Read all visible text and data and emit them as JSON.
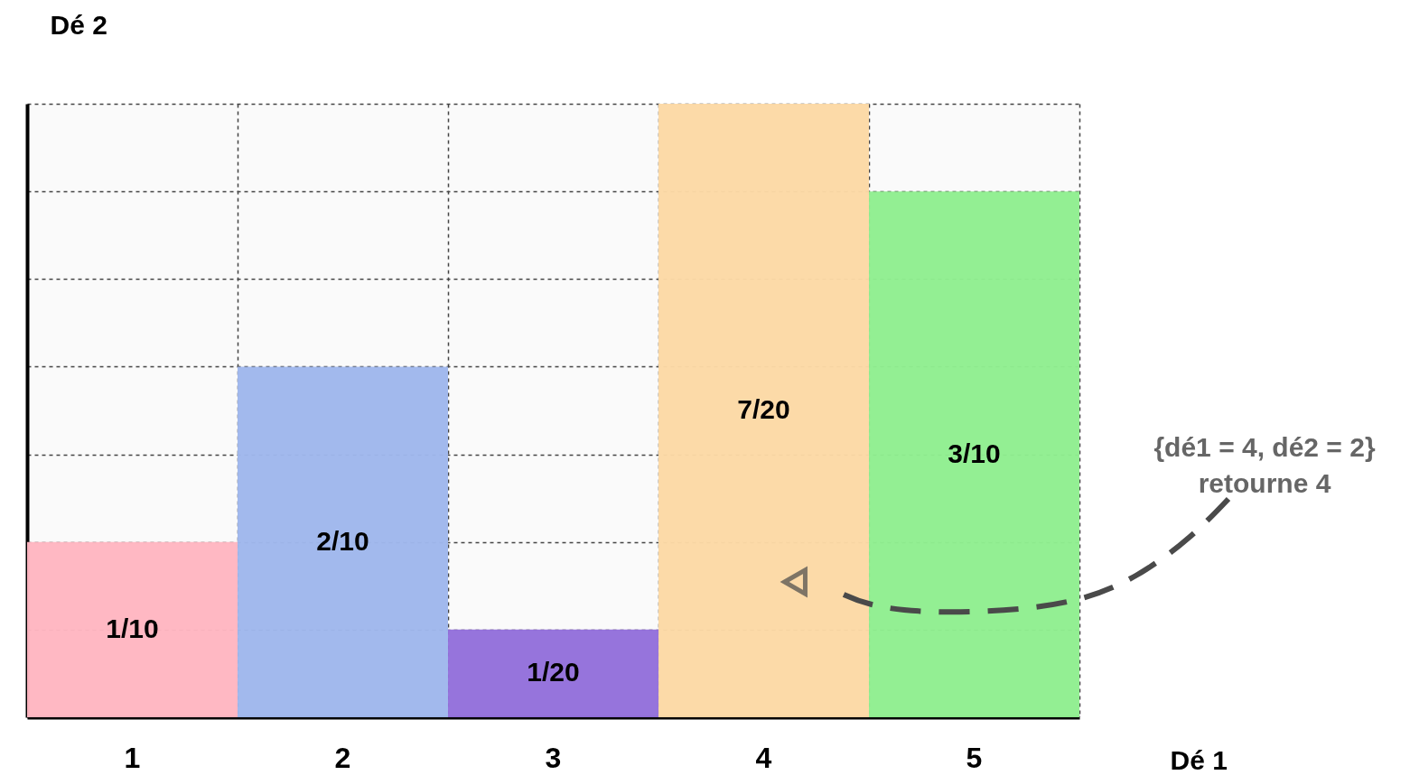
{
  "chart_data": {
    "type": "bar",
    "xlabel": "Dé 1",
    "ylabel": "Dé 2",
    "categories": [
      "1",
      "2",
      "3",
      "4",
      "5"
    ],
    "values": [
      0.1,
      0.2,
      0.05,
      0.35,
      0.3
    ],
    "colors": [
      "#ffb6c1",
      "#9fb7ec",
      "#9370db",
      "#fcd9a5",
      "#90ee90"
    ],
    "value_labels": [
      "1/10",
      "2/10",
      "1/20",
      "7/20",
      "3/10"
    ],
    "ylim": [
      0,
      0.35
    ],
    "yticks": [
      {
        "value": 0,
        "label": null
      },
      {
        "value": 0.05,
        "label": null
      },
      {
        "value": 0.1,
        "label": null
      },
      {
        "value": 0.15,
        "label": null
      },
      {
        "value": 0.2,
        "label": null
      },
      {
        "value": 0.25,
        "label": null
      },
      {
        "value": 0.3,
        "label": null
      },
      {
        "value": 0.35,
        "label": null
      }
    ],
    "grid": true,
    "tick_labels": "x",
    "annotations": [
      "{dé1 = 4, dé2 = 2}\nretourne 4"
    ]
  }
}
